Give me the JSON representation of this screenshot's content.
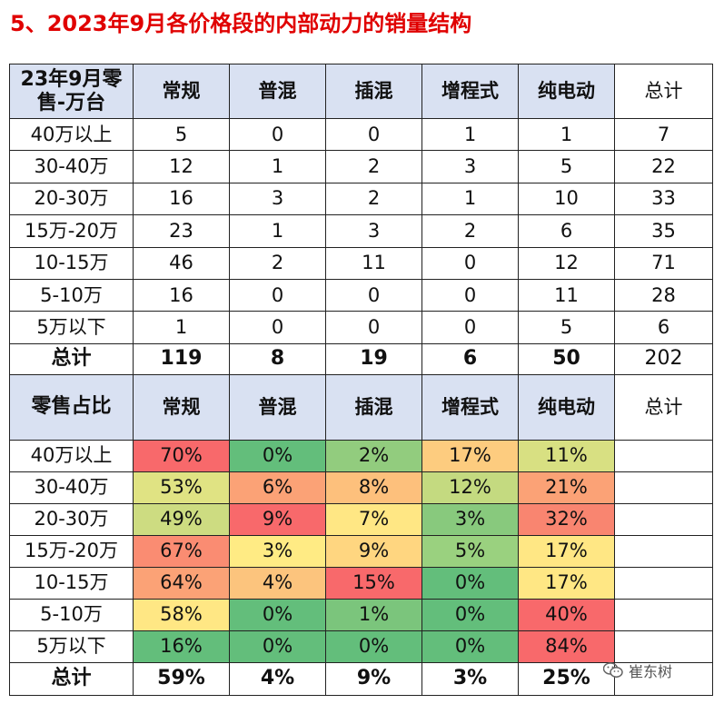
{
  "title": "5、2023年9月各价格段的内部动力的销量结构",
  "colors": {
    "title": "#e00000",
    "header_bg": "#d9e1f2",
    "heat_red": "#f8696b",
    "heat_orange": "#fba276",
    "heat_yellow": "#ffeb84",
    "heat_green": "#63be7b"
  },
  "sales_table": {
    "corner_line1": "23年9月零",
    "corner_line2": "售-万台",
    "headers": [
      "常规",
      "普混",
      "插混",
      "增程式",
      "纯电动",
      "总计"
    ],
    "rows": [
      {
        "label": "40万以上",
        "values": [
          "5",
          "0",
          "0",
          "1",
          "1",
          "7"
        ]
      },
      {
        "label": "30-40万",
        "values": [
          "12",
          "1",
          "2",
          "3",
          "5",
          "22"
        ]
      },
      {
        "label": "20-30万",
        "values": [
          "16",
          "3",
          "2",
          "1",
          "10",
          "33"
        ]
      },
      {
        "label": "15万-20万",
        "values": [
          "23",
          "1",
          "3",
          "2",
          "6",
          "35"
        ]
      },
      {
        "label": "10-15万",
        "values": [
          "46",
          "2",
          "11",
          "0",
          "12",
          "71"
        ]
      },
      {
        "label": "5-10万",
        "values": [
          "16",
          "0",
          "0",
          "0",
          "11",
          "28"
        ]
      },
      {
        "label": "5万以下",
        "values": [
          "1",
          "0",
          "0",
          "0",
          "5",
          "6"
        ]
      }
    ],
    "total": {
      "label": "总计",
      "values": [
        "119",
        "8",
        "19",
        "6",
        "50",
        "202"
      ]
    }
  },
  "share_table": {
    "corner": "零售占比",
    "headers": [
      "常规",
      "普混",
      "插混",
      "增程式",
      "纯电动",
      "总计"
    ],
    "rows": [
      {
        "label": "40万以上",
        "values": [
          "70%",
          "0%",
          "2%",
          "17%",
          "11%",
          ""
        ],
        "colors": [
          "#f8696b",
          "#63be7b",
          "#92cc7e",
          "#fdcc7f",
          "#d8e082"
        ]
      },
      {
        "label": "30-40万",
        "values": [
          "53%",
          "6%",
          "8%",
          "12%",
          "21%"
        ],
        "colors": [
          "#e0e383",
          "#fba276",
          "#fdc07c",
          "#c4da80",
          "#fba276"
        ]
      },
      {
        "label": "20-30万",
        "values": [
          "49%",
          "9%",
          "7%",
          "3%",
          "32%"
        ],
        "colors": [
          "#cddc81",
          "#f8696b",
          "#ffe784",
          "#88c97d",
          "#f98570"
        ]
      },
      {
        "label": "15万-20万",
        "values": [
          "67%",
          "3%",
          "9%",
          "5%",
          "17%"
        ],
        "colors": [
          "#fa8c72",
          "#ffeb84",
          "#ffd680",
          "#9ad17f",
          "#ffe784"
        ]
      },
      {
        "label": "10-15万",
        "values": [
          "64%",
          "4%",
          "15%",
          "0%",
          "17%"
        ],
        "colors": [
          "#fba276",
          "#fcc47d",
          "#f8696b",
          "#63be7b",
          "#ffe784"
        ]
      },
      {
        "label": "5-10万",
        "values": [
          "58%",
          "0%",
          "1%",
          "0%",
          "40%"
        ],
        "colors": [
          "#ffe784",
          "#63be7b",
          "#7bc57c",
          "#63be7b",
          "#f8696b"
        ]
      },
      {
        "label": "5万以下",
        "values": [
          "16%",
          "0%",
          "0%",
          "0%",
          "84%"
        ],
        "colors": [
          "#63be7b",
          "#63be7b",
          "#63be7b",
          "#63be7b",
          "#f8696b"
        ]
      }
    ],
    "total": {
      "label": "总计",
      "values": [
        "59%",
        "4%",
        "9%",
        "3%",
        "25%",
        ""
      ]
    }
  },
  "watermark": {
    "text": "崔东树",
    "icon": "wechat-icon"
  }
}
